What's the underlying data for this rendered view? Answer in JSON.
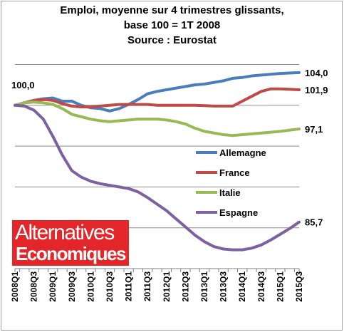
{
  "chart_data": {
    "type": "line",
    "title_lines": [
      "Emploi, moyenne sur 4 trimestres glissants,",
      "base 100 = 1T 2008",
      "Source : Eurostat"
    ],
    "x": [
      "2008Q1",
      "2008Q2",
      "2008Q3",
      "2008Q4",
      "2009Q1",
      "2009Q2",
      "2009Q3",
      "2009Q4",
      "2010Q1",
      "2010Q2",
      "2010Q3",
      "2010Q4",
      "2011Q1",
      "2011Q2",
      "2011Q3",
      "2011Q4",
      "2012Q1",
      "2012Q2",
      "2012Q3",
      "2012Q4",
      "2013Q1",
      "2013Q2",
      "2013Q3",
      "2013Q4",
      "2014Q1",
      "2014Q2",
      "2014Q3",
      "2014Q4",
      "2015Q1",
      "2015Q2",
      "2015Q3"
    ],
    "xtick_labels": [
      "2008Q1",
      "2008Q3",
      "2009Q1",
      "2009Q3",
      "2010Q1",
      "2010Q3",
      "2011Q1",
      "2011Q3",
      "2012Q1",
      "2012Q3",
      "2013Q1",
      "2013Q3",
      "2014Q1",
      "2014Q3",
      "2015Q1",
      "2015Q3"
    ],
    "ylim": [
      80,
      106
    ],
    "grid": true,
    "y_gridlines": [
      80,
      85,
      90,
      95,
      100,
      105
    ],
    "series": [
      {
        "name": "Allemagne",
        "color": "#4a7ebb",
        "end_label": "104,0",
        "values": [
          100.0,
          100.3,
          100.6,
          100.8,
          100.9,
          100.5,
          100.5,
          100.0,
          99.7,
          99.6,
          99.3,
          99.6,
          100.1,
          100.7,
          101.4,
          101.7,
          101.9,
          102.1,
          102.3,
          102.5,
          102.6,
          102.8,
          103.0,
          103.3,
          103.4,
          103.6,
          103.7,
          103.8,
          103.9,
          103.95,
          104.0
        ]
      },
      {
        "name": "France",
        "color": "#be4b48",
        "end_label": "101,9",
        "values": [
          100.0,
          100.3,
          100.6,
          100.7,
          100.6,
          100.2,
          99.9,
          99.8,
          99.8,
          99.9,
          100.0,
          100.1,
          100.1,
          100.1,
          100.1,
          100.0,
          100.0,
          100.0,
          100.0,
          100.0,
          99.95,
          99.9,
          99.9,
          99.9,
          100.5,
          101.1,
          101.7,
          102.0,
          102.0,
          101.95,
          101.9
        ]
      },
      {
        "name": "Italie",
        "color": "#98b954",
        "end_label": "97,1",
        "values": [
          100.0,
          100.3,
          100.4,
          100.3,
          100.1,
          99.6,
          98.9,
          98.6,
          98.3,
          98.1,
          98.0,
          98.1,
          98.2,
          98.3,
          98.3,
          98.3,
          98.2,
          98.0,
          97.7,
          97.2,
          96.8,
          96.6,
          96.4,
          96.3,
          96.4,
          96.5,
          96.6,
          96.7,
          96.8,
          96.95,
          97.1
        ]
      },
      {
        "name": "Espagne",
        "color": "#7d60a0",
        "end_label": "85,7",
        "values": [
          100.0,
          99.9,
          99.4,
          98.3,
          96.2,
          93.9,
          92.0,
          91.2,
          90.7,
          90.4,
          90.2,
          90.0,
          89.8,
          89.4,
          88.7,
          87.9,
          87.1,
          86.1,
          85.1,
          84.1,
          83.3,
          82.7,
          82.4,
          82.3,
          82.3,
          82.5,
          82.9,
          83.5,
          84.2,
          84.9,
          85.7
        ]
      }
    ],
    "start_label": "100,0",
    "legend": "inside-right"
  },
  "logo": {
    "line1": "Alternatives",
    "line2": "Economiques"
  }
}
